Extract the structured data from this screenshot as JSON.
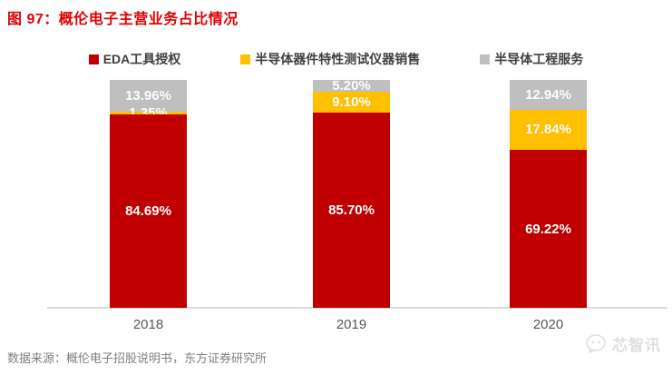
{
  "title": "图 97：概伦电子主营业务占比情况",
  "legend": [
    {
      "label": "EDA工具授权",
      "color": "#c00000"
    },
    {
      "label": "半导体器件特性测试仪器销售",
      "color": "#ffc000"
    },
    {
      "label": "半导体工程服务",
      "color": "#bfbfbf"
    }
  ],
  "chart_data": {
    "type": "bar",
    "stacked": true,
    "categories": [
      "2018",
      "2019",
      "2020"
    ],
    "series": [
      {
        "name": "EDA工具授权",
        "color": "#c00000",
        "values": [
          84.69,
          85.7,
          69.22
        ]
      },
      {
        "name": "半导体器件特性测试仪器销售",
        "color": "#ffc000",
        "values": [
          1.35,
          9.1,
          17.84
        ]
      },
      {
        "name": "半导体工程服务",
        "color": "#bfbfbf",
        "values": [
          13.96,
          5.2,
          12.94
        ]
      }
    ],
    "value_labels": [
      "84.69%",
      "85.70%",
      "69.22%",
      "1.35%",
      "9.10%",
      "17.84%",
      "13.96%",
      "5.20%",
      "12.94%"
    ],
    "label_format": "0.00%",
    "ylim": [
      0,
      100
    ],
    "grid": false,
    "legend_position": "top",
    "value_label_color": "#ffffff"
  },
  "footer": {
    "source": "数据来源：概伦电子招股说明书，东方证券研究所"
  },
  "watermark": {
    "label": "芯智讯",
    "icon": "chat-bubble-logo-icon"
  },
  "colors": {
    "title": "#e00000",
    "axis": "#dcdcdc",
    "legend_text": "#3f3f3f",
    "category_text": "#595959",
    "source_text": "#7f7f7f",
    "watermark_text": "#dadada"
  }
}
